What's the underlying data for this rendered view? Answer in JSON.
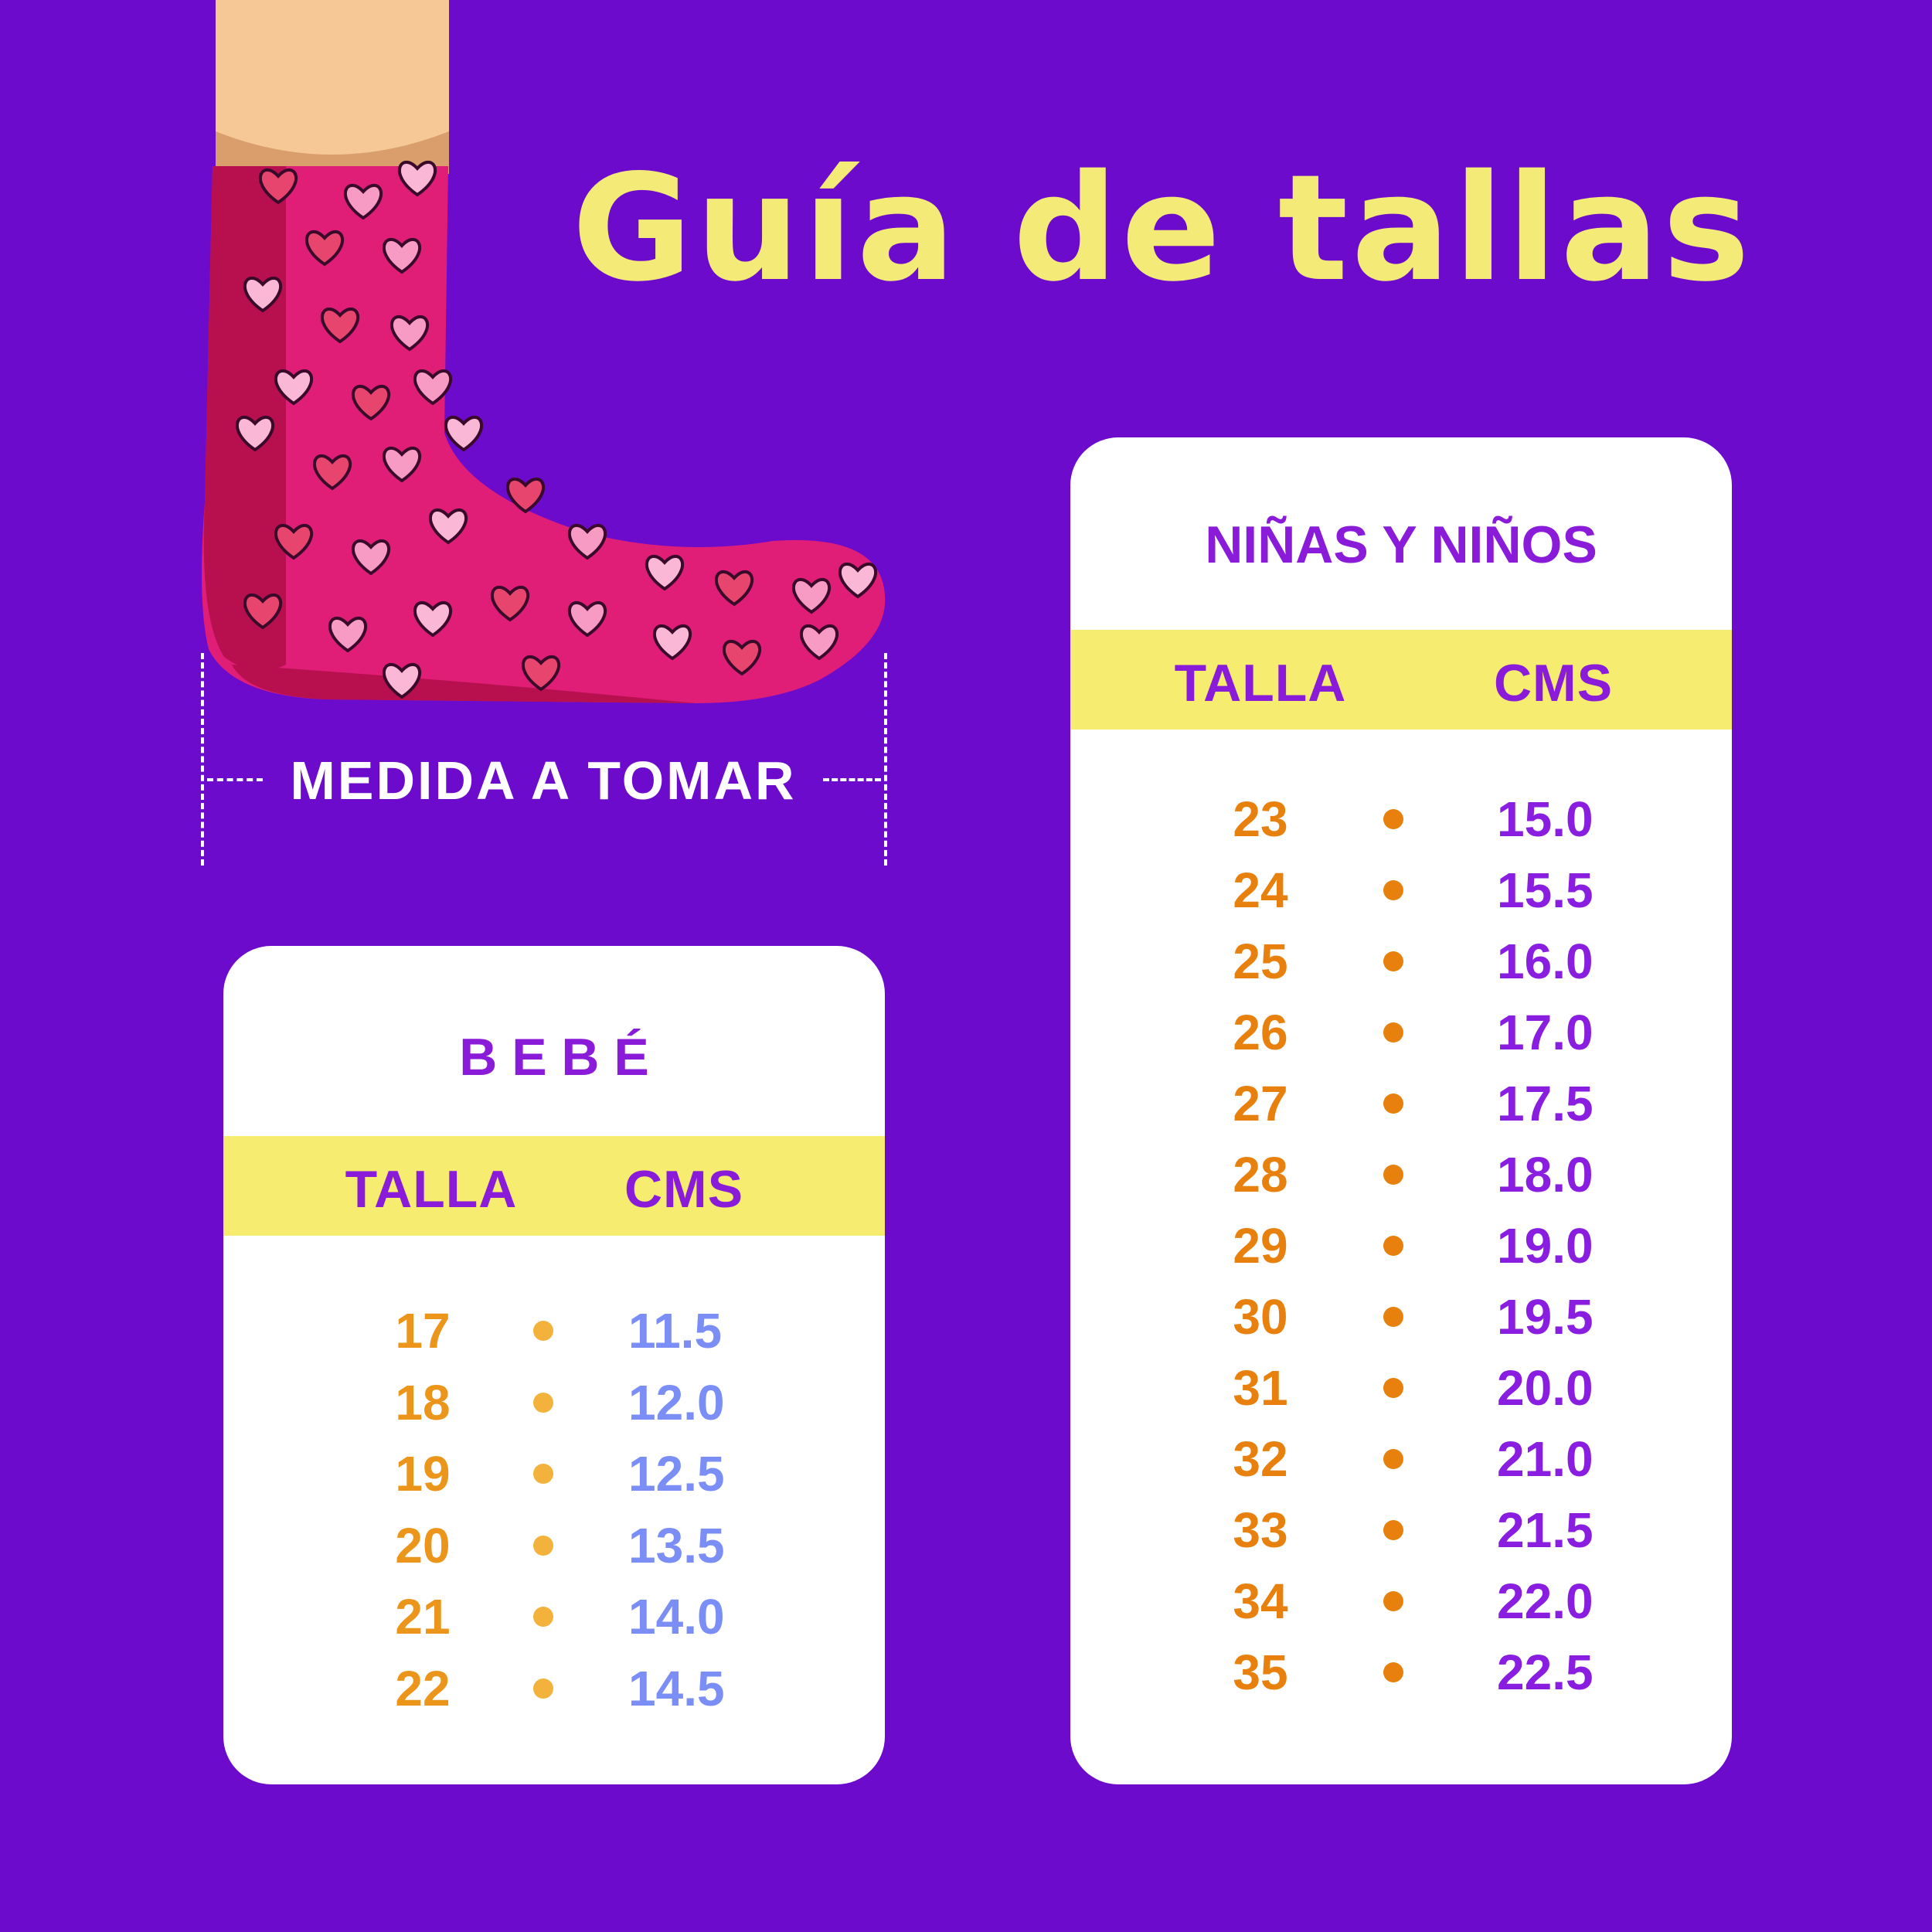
{
  "title": "Guía de tallas",
  "measure_label": "MEDIDA A TOMAR",
  "colors": {
    "background": "#6c0bcb",
    "title": "#f3ea78",
    "band": "#f5ec70",
    "header": "#8a1bd9",
    "bebe_talla": "#eb951a",
    "bebe_dot": "#f2b23c",
    "bebe_cms": "#7b8ef5",
    "kids_talla": "#e8800e",
    "kids_dot": "#e8800e",
    "kids_cms": "#8a1ee0",
    "sock": "#e01e78",
    "skin": "#f5c896"
  },
  "illustration": {
    "icon": "sock-with-hearts-icon"
  },
  "bebe": {
    "title": "B E B É",
    "header_talla": "TALLA",
    "header_cms": "CMS",
    "rows": [
      {
        "talla": "17",
        "cms": "11.5"
      },
      {
        "talla": "18",
        "cms": "12.0"
      },
      {
        "talla": "19",
        "cms": "12.5"
      },
      {
        "talla": "20",
        "cms": "13.5"
      },
      {
        "talla": "21",
        "cms": "14.0"
      },
      {
        "talla": "22",
        "cms": "14.5"
      }
    ]
  },
  "kids": {
    "title": "NIÑAS Y NIÑOS",
    "header_talla": "TALLA",
    "header_cms": "CMS",
    "rows": [
      {
        "talla": "23",
        "cms": "15.0"
      },
      {
        "talla": "24",
        "cms": "15.5"
      },
      {
        "talla": "25",
        "cms": "16.0"
      },
      {
        "talla": "26",
        "cms": "17.0"
      },
      {
        "talla": "27",
        "cms": "17.5"
      },
      {
        "talla": "28",
        "cms": "18.0"
      },
      {
        "talla": "29",
        "cms": "19.0"
      },
      {
        "talla": "30",
        "cms": "19.5"
      },
      {
        "talla": "31",
        "cms": "20.0"
      },
      {
        "talla": "32",
        "cms": "21.0"
      },
      {
        "talla": "33",
        "cms": "21.5"
      },
      {
        "talla": "34",
        "cms": "22.0"
      },
      {
        "talla": "35",
        "cms": "22.5"
      }
    ]
  }
}
